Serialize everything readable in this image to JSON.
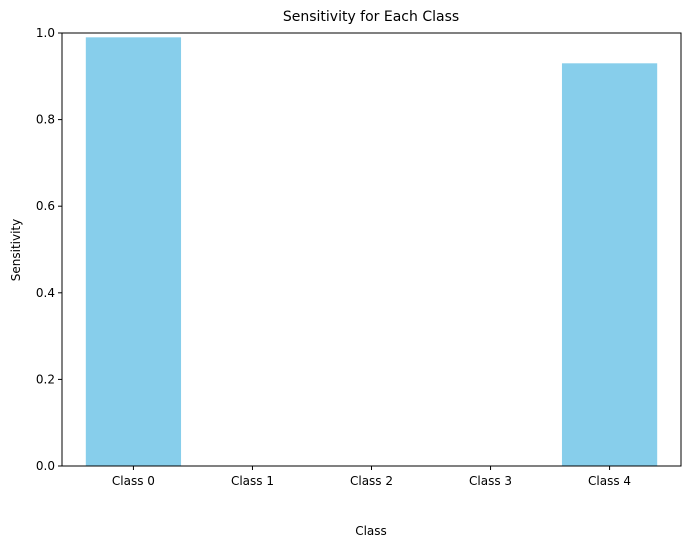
{
  "chart_data": {
    "type": "bar",
    "title": "Sensitivity for Each Class",
    "xlabel": "Class",
    "ylabel": "Sensitivity",
    "categories": [
      "Class 0",
      "Class 1",
      "Class 2",
      "Class 3",
      "Class 4"
    ],
    "values": [
      0.99,
      0.0,
      0.0,
      0.0,
      0.93
    ],
    "ylim": [
      0,
      1.0
    ],
    "yticks": [
      "0.0",
      "0.2",
      "0.4",
      "0.6",
      "0.8",
      "1.0"
    ],
    "grid": false,
    "legend": "none",
    "colors": {
      "bar": "#87CEEB",
      "axis": "#000000",
      "background": "#ffffff"
    }
  }
}
